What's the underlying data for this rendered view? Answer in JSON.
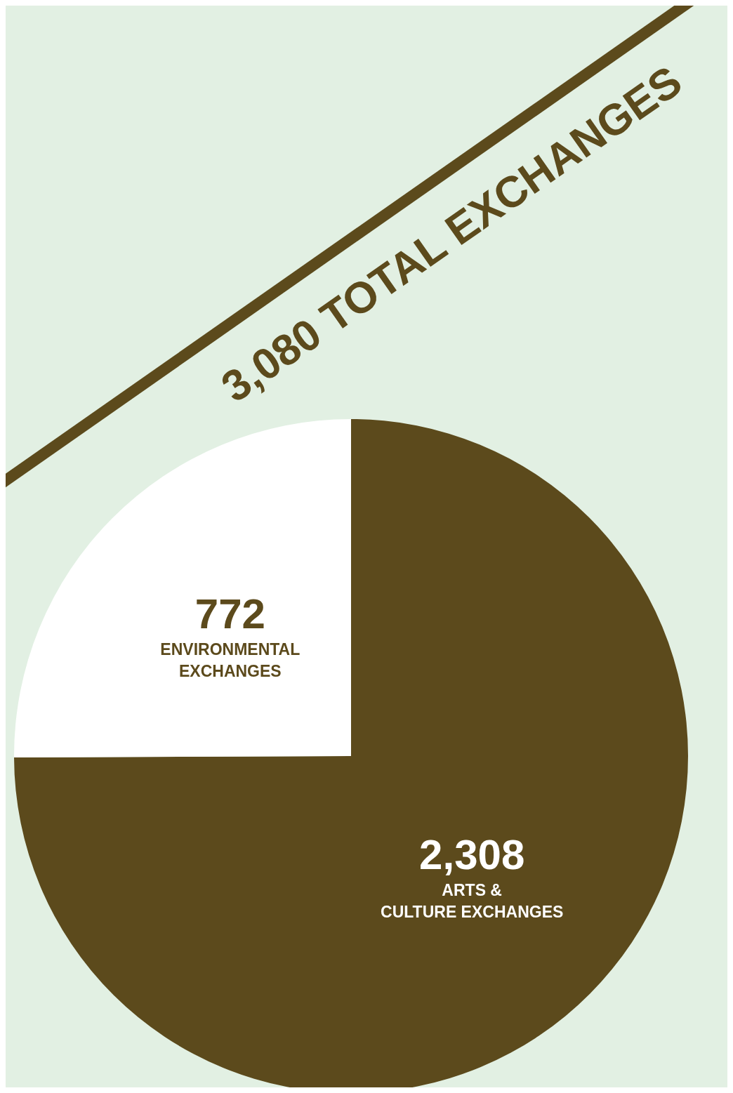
{
  "chart_data": {
    "type": "pie",
    "title": "3,080 TOTAL EXCHANGES",
    "categories": [
      "ARTS & CULTURE EXCHANGES",
      "ENVIRONMENTAL EXCHANGES"
    ],
    "values": [
      2308,
      772
    ],
    "value_labels": [
      "2,308",
      "772"
    ],
    "colors": [
      "#5c4a1c",
      "#ffffff"
    ],
    "legend": false
  }
}
